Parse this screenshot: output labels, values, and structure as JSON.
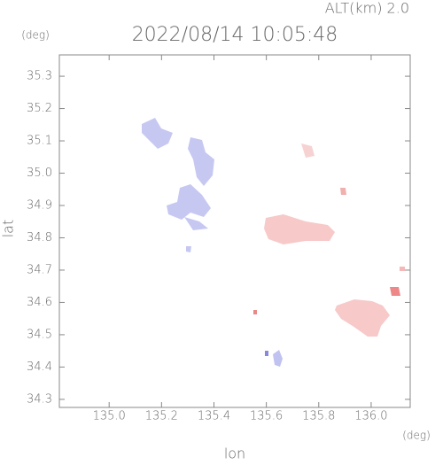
{
  "chart_data": {
    "type": "map",
    "title": "2022/08/14 10:05:48",
    "subtitle": "ALT(km) 2.0",
    "x_label": "lon",
    "y_label": "lat",
    "x_unit": "(deg)",
    "y_unit": "(deg)",
    "xlim": [
      134.81,
      136.149
    ],
    "ylim": [
      34.275,
      35.366
    ],
    "xticks": [
      {
        "value": 135.0,
        "label": "135.0"
      },
      135.2,
      135.4,
      135.6,
      135.8,
      {
        "value": 136.0,
        "label": "136.0"
      }
    ],
    "yticks": [
      34.3,
      34.4,
      34.5,
      34.6,
      34.7,
      34.8,
      34.9,
      {
        "value": 35.0,
        "label": "35.0"
      },
      35.1,
      35.2,
      35.3
    ]
  }
}
